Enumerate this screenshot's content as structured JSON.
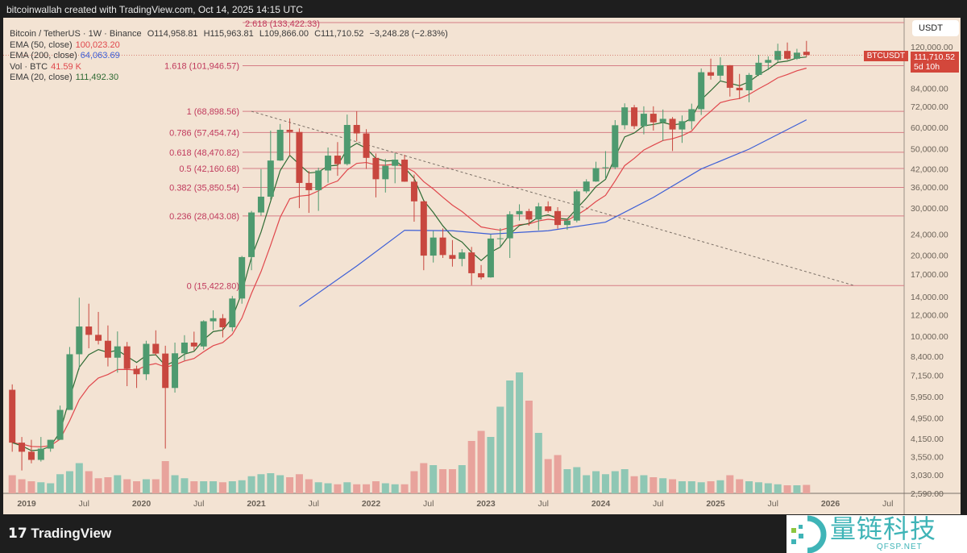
{
  "header": {
    "caption": "bitcoinwallah created with TradingView.com, Oct 14, 2025 14:15 UTC"
  },
  "legend": {
    "symbol": "Bitcoin / TetherUS · 1W · Binance",
    "open": "O114,958.81",
    "high": "H115,963.81",
    "low": "L109,866.00",
    "close": "C111,710.52",
    "change": "−3,248.28 (−2.83%)",
    "ema50_label": "EMA (50, close)",
    "ema50_value": "100,023.20",
    "ema200_label": "EMA (200, close)",
    "ema200_value": "64,063.69",
    "vol_label": "Vol · BTC",
    "vol_value": "41.59 K",
    "ema20_label": "EMA (20, close)",
    "ema20_value": "111,492.30"
  },
  "price_axis": {
    "unit": "USDT",
    "symbol_tag": "BTCUSDT",
    "last_price": "111,710.52",
    "countdown": "5d 10h"
  },
  "footer": {
    "brand": "TradingView"
  },
  "watermark": {
    "text": "量链科技",
    "sub": "QFSP.NET"
  },
  "colors": {
    "background": "#f3e3d3",
    "up": "#4e9a6f",
    "down": "#c8473f",
    "vol_up": "#8fc7b4",
    "vol_down": "#e8a39c",
    "ema20": "#2f6b34",
    "ema50": "#e0474c",
    "ema200": "#3d5fd6",
    "fib": "#c0395c"
  },
  "chart_data": {
    "type": "candlestick",
    "scale": "log",
    "interval_shown": "1W (approximated monthly)",
    "ylim": [
      2590,
      130000
    ],
    "y_ticks": [
      "120,000.00",
      "84,000.00",
      "72,000.00",
      "60,000.00",
      "50,000.00",
      "42,000.00",
      "36,000.00",
      "30,000.00",
      "24,000.00",
      "20,000.00",
      "17,000.00",
      "14,000.00",
      "12,000.00",
      "10,000.00",
      "8,400.00",
      "7,150.00",
      "5,950.00",
      "4,950.00",
      "4,150.00",
      "3,550.00",
      "3,030.00",
      "2,590.00"
    ],
    "x_ticks": [
      "2019",
      "Jul",
      "2020",
      "Jul",
      "2021",
      "Jul",
      "2022",
      "Jul",
      "2023",
      "Jul",
      "2024",
      "Jul",
      "2025",
      "Jul",
      "2026",
      "Jul"
    ],
    "fib_levels": [
      {
        "label": "2.618 (133,422.33)",
        "price": 133422.33
      },
      {
        "label": "1.618 (101,946.57)",
        "price": 101946.57
      },
      {
        "label": "1 (68,898.56)",
        "price": 68898.56
      },
      {
        "label": "0.786 (57,454.74)",
        "price": 57454.74
      },
      {
        "label": "0.618 (48,470.82)",
        "price": 48470.82
      },
      {
        "label": "0.5 (42,160.68)",
        "price": 42160.68
      },
      {
        "label": "0.382 (35,850.54)",
        "price": 35850.54
      },
      {
        "label": "0.236 (28,043.08)",
        "price": 28043.08
      },
      {
        "label": "0 (15,422.80)",
        "price": 15422.8
      }
    ],
    "trendline": {
      "from": [
        "2020-12",
        68898.56
      ],
      "to": [
        "2026-03",
        15422.8
      ]
    },
    "ohlc": [
      [
        "2018-11",
        6300,
        6600,
        3700,
        4000
      ],
      [
        "2018-12",
        4000,
        4200,
        3150,
        3700
      ],
      [
        "2019-01",
        3700,
        4100,
        3350,
        3450
      ],
      [
        "2019-02",
        3450,
        4200,
        3400,
        3800
      ],
      [
        "2019-03",
        3800,
        4100,
        3700,
        4100
      ],
      [
        "2019-04",
        4100,
        5500,
        4100,
        5300
      ],
      [
        "2019-05",
        5300,
        9100,
        5300,
        8550
      ],
      [
        "2019-06",
        8550,
        13900,
        7500,
        10850
      ],
      [
        "2019-07",
        10850,
        13200,
        9000,
        10100
      ],
      [
        "2019-08",
        10100,
        12300,
        9300,
        9600
      ],
      [
        "2019-09",
        9600,
        10950,
        7700,
        8300
      ],
      [
        "2019-10",
        8300,
        10400,
        7300,
        9150
      ],
      [
        "2019-11",
        9150,
        9500,
        6500,
        7550
      ],
      [
        "2019-12",
        7550,
        7750,
        6400,
        7200
      ],
      [
        "2020-01",
        7200,
        9600,
        6850,
        9350
      ],
      [
        "2020-02",
        9350,
        10500,
        8450,
        8600
      ],
      [
        "2020-03",
        8600,
        9200,
        3800,
        6400
      ],
      [
        "2020-04",
        6400,
        9450,
        6150,
        8620
      ],
      [
        "2020-05",
        8620,
        10070,
        8100,
        9450
      ],
      [
        "2020-06",
        9450,
        10380,
        8830,
        9140
      ],
      [
        "2020-07",
        9140,
        11450,
        8900,
        11350
      ],
      [
        "2020-08",
        11350,
        12470,
        10530,
        11650
      ],
      [
        "2020-09",
        11650,
        12070,
        9880,
        10780
      ],
      [
        "2020-10",
        10780,
        14100,
        10400,
        13800
      ],
      [
        "2020-11",
        13800,
        19900,
        13200,
        19700
      ],
      [
        "2020-12",
        19700,
        29300,
        17600,
        28900
      ],
      [
        "2021-01",
        28900,
        41950,
        28100,
        33100
      ],
      [
        "2021-02",
        33100,
        58350,
        32300,
        45150
      ],
      [
        "2021-03",
        45150,
        61800,
        45000,
        58800
      ],
      [
        "2021-04",
        58800,
        64850,
        47000,
        57700
      ],
      [
        "2021-05",
        57700,
        59500,
        30000,
        37250
      ],
      [
        "2021-06",
        37250,
        41300,
        28800,
        35000
      ],
      [
        "2021-07",
        35000,
        42450,
        29300,
        41450
      ],
      [
        "2021-08",
        41450,
        50500,
        37300,
        47100
      ],
      [
        "2021-09",
        47100,
        52900,
        39600,
        43800
      ],
      [
        "2021-10",
        43800,
        67000,
        43300,
        61300
      ],
      [
        "2021-11",
        61300,
        69000,
        53250,
        57000
      ],
      [
        "2021-12",
        57000,
        59100,
        42000,
        46200
      ],
      [
        "2022-01",
        46200,
        47990,
        32900,
        38450
      ],
      [
        "2022-02",
        38450,
        45800,
        34300,
        43150
      ],
      [
        "2022-03",
        43150,
        48200,
        37150,
        45500
      ],
      [
        "2022-04",
        45500,
        47450,
        37600,
        37650
      ],
      [
        "2022-05",
        37650,
        40000,
        26700,
        31800
      ],
      [
        "2022-06",
        31800,
        31980,
        17600,
        19950
      ],
      [
        "2022-07",
        19950,
        24650,
        18800,
        23300
      ],
      [
        "2022-08",
        23300,
        25200,
        19550,
        20050
      ],
      [
        "2022-09",
        20050,
        22800,
        18150,
        19400
      ],
      [
        "2022-10",
        19400,
        21100,
        18200,
        20500
      ],
      [
        "2022-11",
        20500,
        21500,
        15480,
        17150
      ],
      [
        "2022-12",
        17150,
        18400,
        16250,
        16550
      ],
      [
        "2023-01",
        16550,
        23950,
        16500,
        23100
      ],
      [
        "2023-02",
        23100,
        25250,
        21350,
        23150
      ],
      [
        "2023-03",
        23150,
        29200,
        19550,
        28450
      ],
      [
        "2023-04",
        28450,
        31000,
        26950,
        29250
      ],
      [
        "2023-05",
        29250,
        29850,
        25800,
        27200
      ],
      [
        "2023-06",
        27200,
        31400,
        24800,
        30450
      ],
      [
        "2023-07",
        30450,
        31800,
        28850,
        29250
      ],
      [
        "2023-08",
        29250,
        30250,
        25150,
        25950
      ],
      [
        "2023-09",
        25950,
        27450,
        24900,
        26950
      ],
      [
        "2023-10",
        26950,
        35200,
        26550,
        34650
      ],
      [
        "2023-11",
        34650,
        38450,
        34100,
        37700
      ],
      [
        "2023-12",
        37700,
        44700,
        37600,
        42300
      ],
      [
        "2024-01",
        42300,
        48950,
        38550,
        42600
      ],
      [
        "2024-02",
        42600,
        63900,
        41900,
        61150
      ],
      [
        "2024-03",
        61150,
        73800,
        59000,
        71300
      ],
      [
        "2024-04",
        71300,
        72800,
        59200,
        60650
      ],
      [
        "2024-05",
        60650,
        71950,
        56550,
        67500
      ],
      [
        "2024-06",
        67500,
        71950,
        58400,
        62700
      ],
      [
        "2024-07",
        62700,
        70000,
        53500,
        64600
      ],
      [
        "2024-08",
        64600,
        65600,
        49000,
        58950
      ],
      [
        "2024-09",
        58950,
        66500,
        52550,
        63300
      ],
      [
        "2024-10",
        63300,
        73600,
        58900,
        70200
      ],
      [
        "2024-11",
        70200,
        99600,
        66800,
        96400
      ],
      [
        "2024-12",
        96400,
        108350,
        90500,
        93600
      ],
      [
        "2025-01",
        93600,
        109600,
        89250,
        102400
      ],
      [
        "2025-02",
        102400,
        102500,
        78250,
        84350
      ],
      [
        "2025-03",
        84350,
        95000,
        76600,
        82550
      ],
      [
        "2025-04",
        82550,
        95750,
        74500,
        94200
      ],
      [
        "2025-05",
        94200,
        111950,
        93350,
        104600
      ],
      [
        "2025-06",
        104600,
        110500,
        98200,
        107150
      ],
      [
        "2025-07",
        107150,
        123200,
        105250,
        115750
      ],
      [
        "2025-08",
        115750,
        124450,
        107250,
        108250
      ],
      [
        "2025-09",
        108250,
        117900,
        107250,
        114050
      ],
      [
        "2025-10",
        114958.81,
        126200,
        109866,
        111710.52
      ]
    ],
    "volume_k": [
      90,
      70,
      60,
      55,
      50,
      95,
      110,
      150,
      110,
      75,
      80,
      90,
      70,
      60,
      70,
      70,
      160,
      90,
      75,
      60,
      60,
      60,
      55,
      60,
      65,
      85,
      95,
      100,
      90,
      80,
      95,
      70,
      55,
      50,
      45,
      55,
      45,
      45,
      60,
      50,
      45,
      45,
      110,
      150,
      140,
      120,
      120,
      140,
      260,
      310,
      280,
      430,
      560,
      600,
      460,
      300,
      170,
      190,
      120,
      130,
      90,
      110,
      95,
      110,
      120,
      85,
      90,
      80,
      75,
      70,
      60,
      60,
      55,
      60,
      65,
      90,
      70,
      60,
      55,
      50,
      45,
      40,
      40,
      42
    ],
    "ema200_points": [
      [
        "2021-05",
        12900
      ],
      [
        "2021-11",
        18250
      ],
      [
        "2022-04",
        24800
      ],
      [
        "2022-09",
        24700
      ],
      [
        "2023-01",
        24000
      ],
      [
        "2023-07",
        24700
      ],
      [
        "2024-01",
        26600
      ],
      [
        "2024-06",
        32900
      ],
      [
        "2024-11",
        42000
      ],
      [
        "2025-04",
        49800
      ],
      [
        "2025-10",
        64063.69
      ]
    ]
  }
}
